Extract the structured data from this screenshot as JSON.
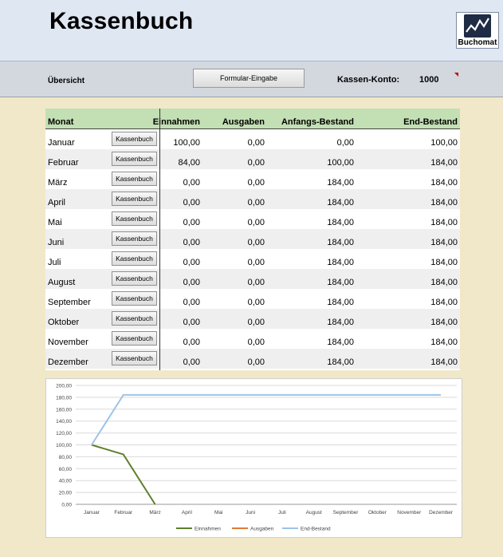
{
  "header": {
    "title": "Kassenbuch",
    "logo_text": "Buchomat"
  },
  "toolbar": {
    "overview_label": "Übersicht",
    "form_button": "Formular-Eingabe",
    "konto_label": "Kassen-Konto:",
    "konto_value": "1000"
  },
  "table": {
    "columns": {
      "monat": "Monat",
      "einnahmen": "Einnahmen",
      "ausgaben": "Ausgaben",
      "anfangs": "Anfangs-Bestand",
      "end": "End-Bestand"
    },
    "button_label": "Kassenbuch",
    "rows": [
      {
        "monat": "Januar",
        "ein": "100,00",
        "aus": "0,00",
        "anf": "0,00",
        "end": "100,00"
      },
      {
        "monat": "Februar",
        "ein": "84,00",
        "aus": "0,00",
        "anf": "100,00",
        "end": "184,00"
      },
      {
        "monat": "März",
        "ein": "0,00",
        "aus": "0,00",
        "anf": "184,00",
        "end": "184,00"
      },
      {
        "monat": "April",
        "ein": "0,00",
        "aus": "0,00",
        "anf": "184,00",
        "end": "184,00"
      },
      {
        "monat": "Mai",
        "ein": "0,00",
        "aus": "0,00",
        "anf": "184,00",
        "end": "184,00"
      },
      {
        "monat": "Juni",
        "ein": "0,00",
        "aus": "0,00",
        "anf": "184,00",
        "end": "184,00"
      },
      {
        "monat": "Juli",
        "ein": "0,00",
        "aus": "0,00",
        "anf": "184,00",
        "end": "184,00"
      },
      {
        "monat": "August",
        "ein": "0,00",
        "aus": "0,00",
        "anf": "184,00",
        "end": "184,00"
      },
      {
        "monat": "September",
        "ein": "0,00",
        "aus": "0,00",
        "anf": "184,00",
        "end": "184,00"
      },
      {
        "monat": "Oktober",
        "ein": "0,00",
        "aus": "0,00",
        "anf": "184,00",
        "end": "184,00"
      },
      {
        "monat": "November",
        "ein": "0,00",
        "aus": "0,00",
        "anf": "184,00",
        "end": "184,00"
      },
      {
        "monat": "Dezember",
        "ein": "0,00",
        "aus": "0,00",
        "anf": "184,00",
        "end": "184,00"
      }
    ]
  },
  "chart_data": {
    "type": "line",
    "categories": [
      "Januar",
      "Februar",
      "März",
      "April",
      "Mai",
      "Juni",
      "Juli",
      "August",
      "September",
      "Oktober",
      "November",
      "Dezember"
    ],
    "series": [
      {
        "name": "Einnahmen",
        "color": "#5e7f2c",
        "values": [
          100,
          84,
          0,
          null,
          null,
          null,
          null,
          null,
          null,
          null,
          null,
          null
        ]
      },
      {
        "name": "Ausgaben",
        "color": "#e07b39",
        "values": [
          null,
          null,
          null,
          null,
          null,
          null,
          null,
          null,
          null,
          null,
          null,
          null
        ]
      },
      {
        "name": "End-Bestand",
        "color": "#9dc3e6",
        "values": [
          100,
          184,
          184,
          184,
          184,
          184,
          184,
          184,
          184,
          184,
          184,
          184
        ]
      }
    ],
    "yticks": [
      "0,00",
      "20,00",
      "40,00",
      "60,00",
      "80,00",
      "100,00",
      "120,00",
      "140,00",
      "160,00",
      "180,00",
      "200,00"
    ],
    "ylim": [
      0,
      200
    ],
    "grid": true,
    "legend": "bottom"
  }
}
